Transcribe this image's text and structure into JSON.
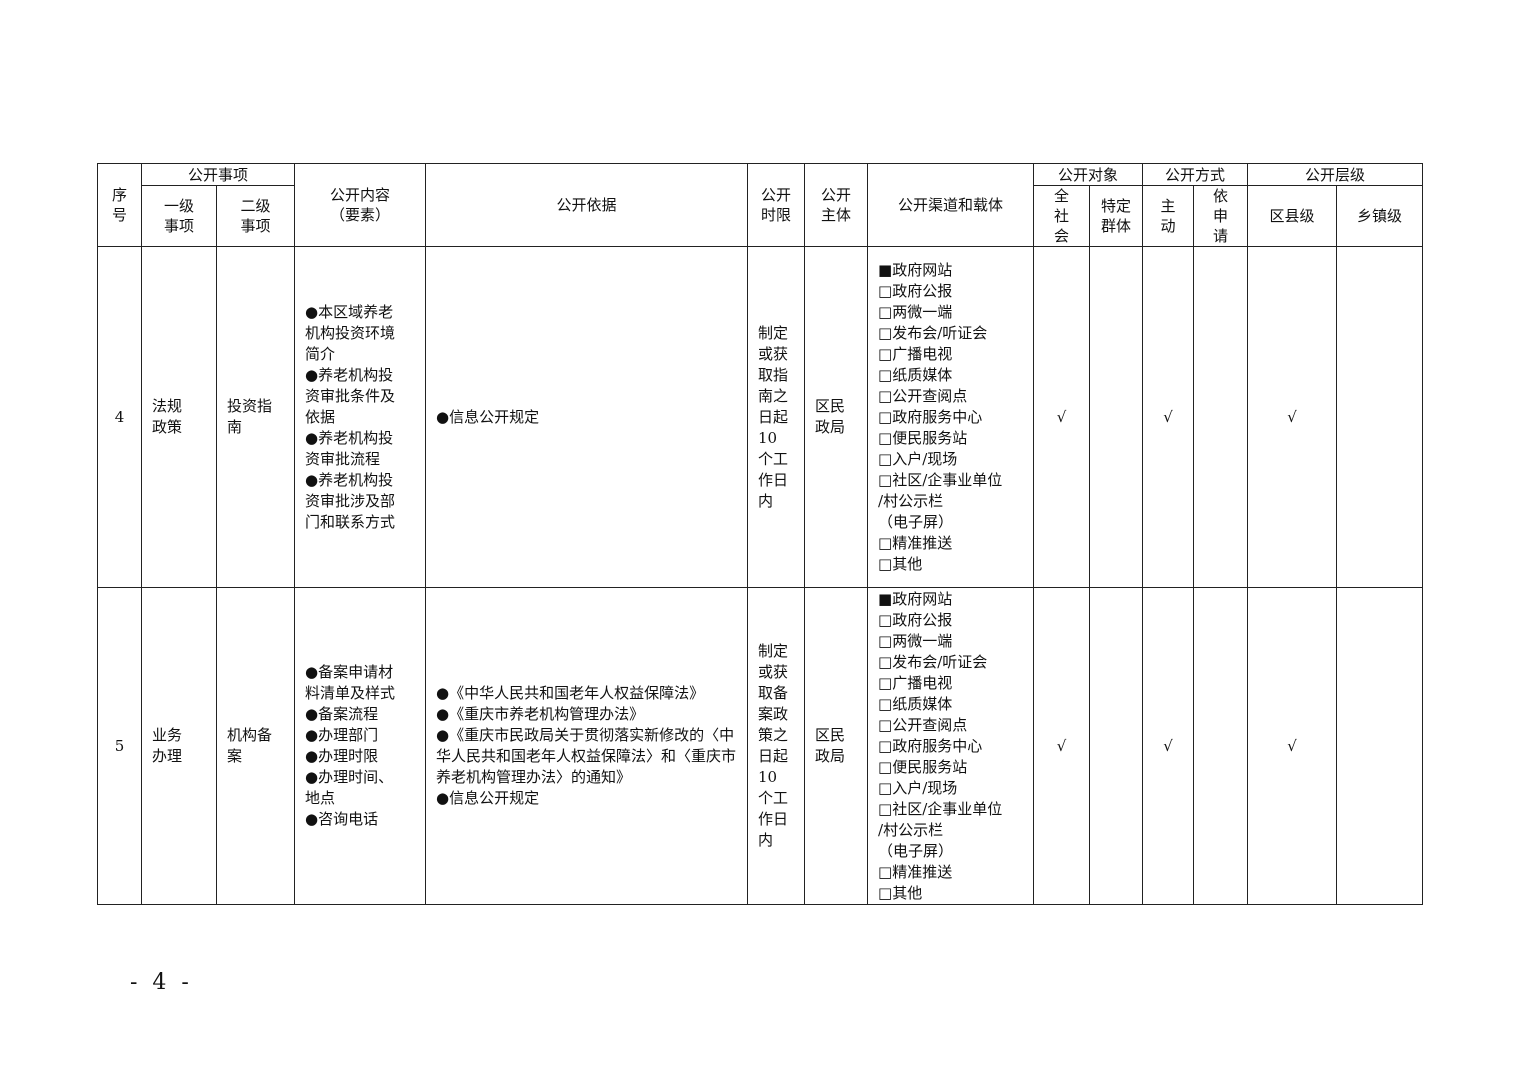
{
  "header": {
    "seq": "序号",
    "items": "公开事项",
    "level1": "一级事项",
    "level2": "二级事项",
    "content": "公开内容（要素）",
    "basis": "公开依据",
    "deadline": "公开时限",
    "subject": "公开主体",
    "channel": "公开渠道和载体",
    "target": "公开对象",
    "target_all": "全社会",
    "target_specific": "特定群体",
    "method": "公开方式",
    "method_active": "主动",
    "method_request": "依申请",
    "level": "公开层级",
    "level_county": "区县级",
    "level_town": "乡镇级"
  },
  "rows": [
    {
      "seq": "4",
      "level1": "法规政策",
      "level2": "投资指南",
      "content": [
        "●本区域养老机构投资环境简介",
        "●养老机构投资审批条件及依据",
        "●养老机构投资审批流程",
        "●养老机构投资审批涉及部门和联系方式"
      ],
      "basis": [
        "●信息公开规定"
      ],
      "deadline": "制定或获取指南之日起10个工作日内",
      "subject": "区民政局",
      "channels": [
        "■政府网站",
        "□政府公报",
        "□两微一端",
        "□发布会/听证会",
        "□广播电视",
        "□纸质媒体",
        "□公开查阅点",
        "□政府服务中心",
        "□便民服务站",
        "□入户/现场",
        "□社区/企事业单位\n/村公示栏\n（电子屏）",
        "□精准推送",
        "□其他"
      ],
      "target_all": "√",
      "target_specific": "",
      "method_active": "√",
      "method_request": "",
      "level_county": "√",
      "level_town": ""
    },
    {
      "seq": "5",
      "level1": "业务办理",
      "level2": "机构备案",
      "content": [
        "●备案申请材料清单及样式",
        "●备案流程",
        "●办理部门",
        "●办理时限",
        "●办理时间、地点",
        "●咨询电话"
      ],
      "basis": [
        "●《中华人民共和国老年人权益保障法》",
        "●《重庆市养老机构管理办法》",
        "●《重庆市民政局关于贯彻落实新修改的〈中华人民共和国老年人权益保障法〉和〈重庆市养老机构管理办法〉的通知》",
        "●信息公开规定"
      ],
      "deadline": "制定或获取备案政策之日起10个工作日内",
      "subject": "区民政局",
      "channels": [
        "■政府网站",
        "□政府公报",
        "□两微一端",
        "□发布会/听证会",
        "□广播电视",
        "□纸质媒体",
        "□公开查阅点",
        "□政府服务中心",
        "□便民服务站",
        "□入户/现场",
        "□社区/企事业单位\n/村公示栏\n（电子屏）",
        "□精准推送",
        "□其他"
      ],
      "target_all": "√",
      "target_specific": "",
      "method_active": "√",
      "method_request": "",
      "level_county": "√",
      "level_town": ""
    }
  ],
  "page_number": "- 4 -"
}
